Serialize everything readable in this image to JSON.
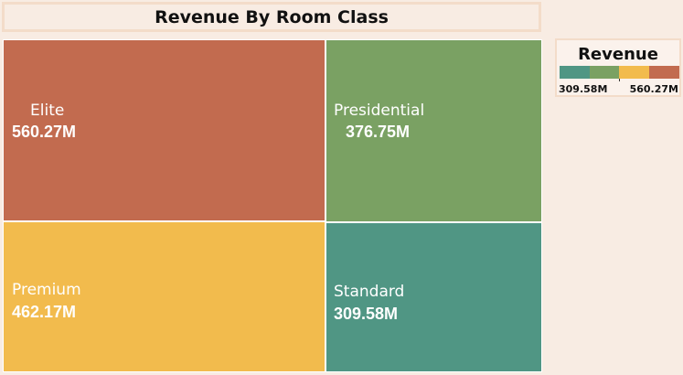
{
  "chart_data": {
    "type": "treemap",
    "title": "Revenue By Room Class",
    "categories": [
      "Elite",
      "Premium",
      "Presidential",
      "Standard"
    ],
    "values": [
      560.27,
      462.17,
      376.75,
      309.58
    ],
    "value_labels": [
      "560.27M",
      "462.17M",
      "376.75M",
      "309.58M"
    ],
    "unit": "M",
    "colors": [
      "#c26b4f",
      "#f2bb4d",
      "#7aa163",
      "#509684"
    ],
    "legend": {
      "title": "Revenue",
      "min_label": "309.58M",
      "max_label": "560.27M",
      "colors": [
        "#509684",
        "#7aa163",
        "#f2bb4d",
        "#c26b4f"
      ],
      "placement": "top-right"
    }
  }
}
